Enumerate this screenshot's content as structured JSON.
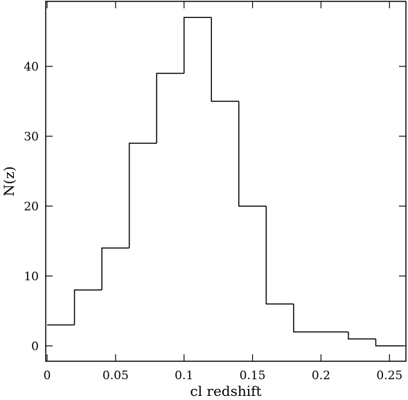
{
  "chart_data": {
    "type": "histogram",
    "xlabel": "cl redshift",
    "ylabel": "N(z)",
    "bins": [
      0,
      0.02,
      0.04,
      0.06,
      0.08,
      0.1,
      0.12,
      0.14,
      0.16,
      0.18,
      0.2,
      0.22,
      0.24,
      0.26
    ],
    "counts": [
      3,
      8,
      14,
      29,
      39,
      47,
      35,
      20,
      6,
      2,
      2,
      1,
      0
    ],
    "color": "#000000",
    "xlim": [
      -0.001,
      0.262
    ],
    "xticks": [
      0,
      0.05,
      0.1,
      0.15,
      0.2,
      0.25
    ],
    "ylim": [
      -2.2,
      49.3
    ],
    "yticks": [
      0,
      10,
      20,
      30,
      40
    ]
  }
}
